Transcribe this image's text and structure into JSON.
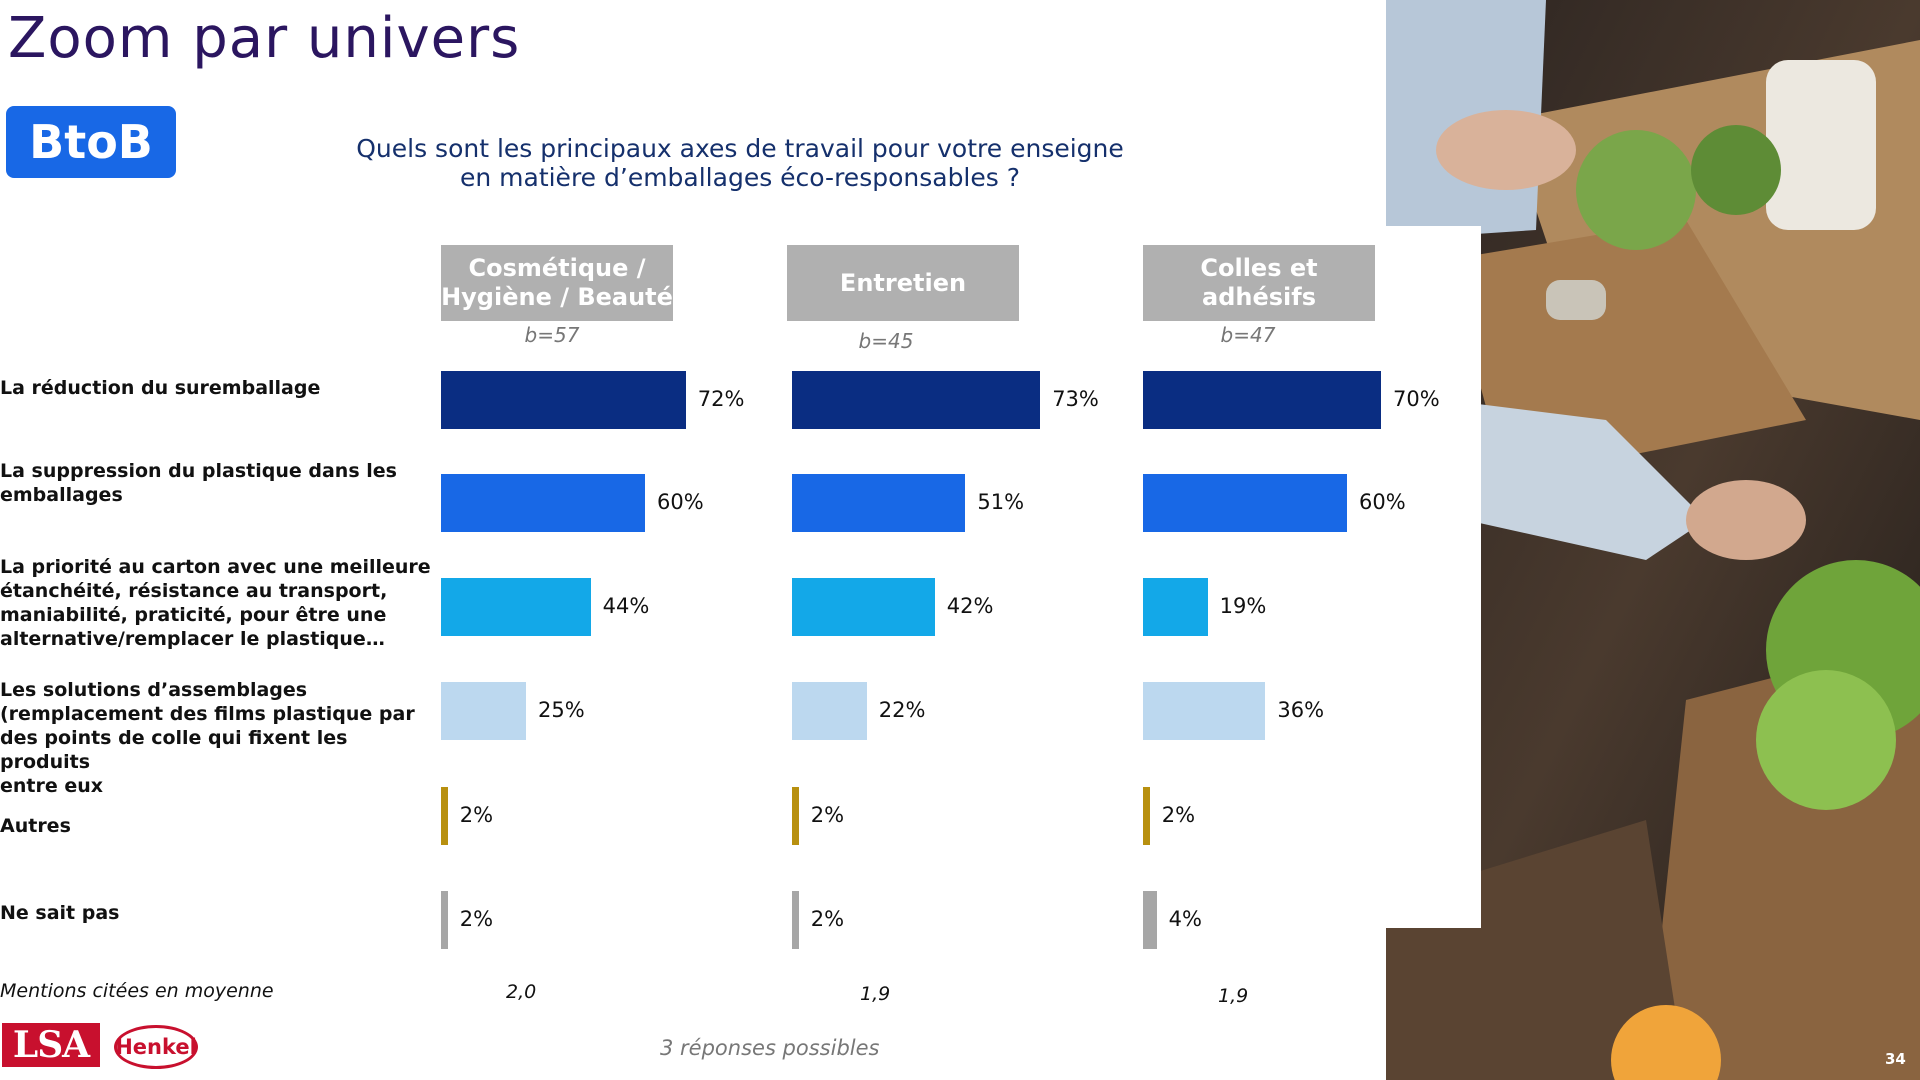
{
  "page": {
    "title": "Zoom par univers",
    "badge": "BtoB",
    "page_number": "34"
  },
  "question": {
    "line1": "Quels sont les principaux axes de travail pour votre enseigne",
    "line2": "en matière d’emballages éco-responsables ?"
  },
  "footnote": "3 réponses possibles",
  "logos": {
    "lsa": "LSA",
    "henkel": "Henkel"
  },
  "colors": {
    "dark_blue": "#0a2d82",
    "blue": "#1868e6",
    "cyan": "#13a8e8",
    "light_blue": "#bcd8ef",
    "gold": "#b8900f",
    "gray": "#a6a6a6",
    "title": "#2b1660"
  },
  "chart_data": {
    "type": "bar",
    "orientation": "horizontal",
    "unit": "%",
    "categories": [
      "La réduction du suremballage",
      "La suppression du plastique dans les emballages",
      "La priorité au carton avec une meilleure étanchéité, résistance au transport, maniabilité, praticité, pour être une alternative/remplacer le plastique…",
      "Les solutions d’assemblages (remplacement des films plastique par des points de colle qui fixent les produits entre eux",
      "Autres",
      "Ne sait pas"
    ],
    "category_lines": [
      [
        "La réduction du suremballage"
      ],
      [
        "La suppression du plastique dans les",
        "emballages"
      ],
      [
        "La priorité au carton avec une meilleure",
        "étanchéité, résistance au transport,",
        "maniabilité, praticité, pour être une",
        "alternative/remplacer le plastique…"
      ],
      [
        "Les solutions d’assemblages",
        "(remplacement des films plastique par",
        "des points de colle qui fixent les produits",
        "entre eux"
      ],
      [
        "Autres"
      ],
      [
        "Ne sait pas"
      ]
    ],
    "bar_colors": [
      "#0a2d82",
      "#1868e6",
      "#13a8e8",
      "#bcd8ef",
      "#b8900f",
      "#a6a6a6"
    ],
    "series": [
      {
        "name": "Cosmétique / Hygiène / Beauté",
        "name_lines": [
          "Cosmétique /",
          "Hygiène / Beauté"
        ],
        "base": "b=57",
        "values": [
          72,
          60,
          44,
          25,
          2,
          2
        ],
        "mean": "2,0"
      },
      {
        "name": "Entretien",
        "name_lines": [
          "Entretien"
        ],
        "base": "b=45",
        "values": [
          73,
          51,
          42,
          22,
          2,
          2
        ],
        "mean": "1,9"
      },
      {
        "name": "Colles et adhésifs",
        "name_lines": [
          "Colles et adhésifs"
        ],
        "base": "b=47",
        "values": [
          70,
          60,
          19,
          36,
          2,
          4
        ],
        "mean": "1,9"
      }
    ],
    "mean_label": "Mentions citées en moyenne"
  }
}
